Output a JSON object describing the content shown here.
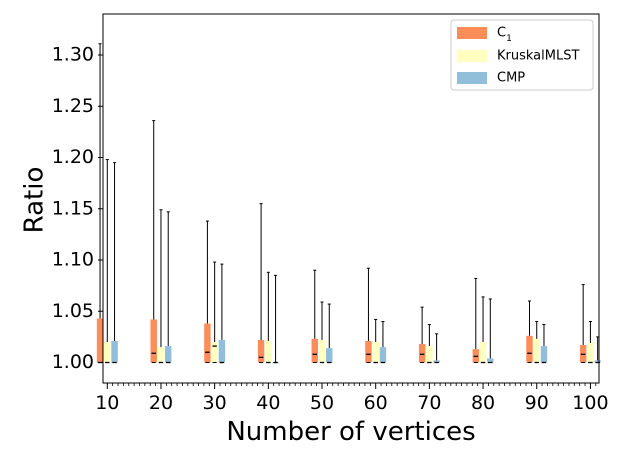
{
  "chart_data": {
    "type": "boxplot",
    "title": "",
    "xlabel": "Number of vertices",
    "ylabel": "Ratio",
    "ylim": [
      0.98,
      1.34
    ],
    "xlim": [
      9.2,
      101.6
    ],
    "yticks": [
      1.0,
      1.05,
      1.1,
      1.15,
      1.2,
      1.25,
      1.3
    ],
    "ytick_labels": [
      "1.00",
      "1.05",
      "1.10",
      "1.15",
      "1.20",
      "1.25",
      "1.30"
    ],
    "xticks": [
      10,
      20,
      30,
      40,
      50,
      60,
      70,
      80,
      90,
      100
    ],
    "xtick_labels": [
      "10",
      "20",
      "30",
      "40",
      "50",
      "60",
      "70",
      "80",
      "90",
      "100"
    ],
    "grid": false,
    "legend_position": "top-right",
    "series": [
      {
        "name": "C",
        "name_subscript": "1",
        "color": "#fc8d59",
        "boxes": [
          {
            "x": 10,
            "q1": 1.0,
            "median": 1.0,
            "q3": 1.043,
            "whisker_low": 1.0,
            "whisker_high": 1.311
          },
          {
            "x": 20,
            "q1": 1.0,
            "median": 1.009,
            "q3": 1.042,
            "whisker_low": 1.0,
            "whisker_high": 1.236
          },
          {
            "x": 30,
            "q1": 1.0,
            "median": 1.01,
            "q3": 1.038,
            "whisker_low": 1.0,
            "whisker_high": 1.138
          },
          {
            "x": 40,
            "q1": 1.0,
            "median": 1.005,
            "q3": 1.022,
            "whisker_low": 1.0,
            "whisker_high": 1.155
          },
          {
            "x": 50,
            "q1": 1.0,
            "median": 1.008,
            "q3": 1.023,
            "whisker_low": 1.0,
            "whisker_high": 1.09
          },
          {
            "x": 60,
            "q1": 1.0,
            "median": 1.008,
            "q3": 1.021,
            "whisker_low": 1.0,
            "whisker_high": 1.092
          },
          {
            "x": 70,
            "q1": 1.0,
            "median": 1.008,
            "q3": 1.018,
            "whisker_low": 1.0,
            "whisker_high": 1.054
          },
          {
            "x": 80,
            "q1": 1.0,
            "median": 1.006,
            "q3": 1.013,
            "whisker_low": 1.0,
            "whisker_high": 1.082
          },
          {
            "x": 90,
            "q1": 1.0,
            "median": 1.009,
            "q3": 1.026,
            "whisker_low": 1.0,
            "whisker_high": 1.06
          },
          {
            "x": 100,
            "q1": 1.0,
            "median": 1.008,
            "q3": 1.017,
            "whisker_low": 1.0,
            "whisker_high": 1.076
          }
        ]
      },
      {
        "name": "KruskalMLST",
        "name_subscript": "",
        "color": "#ffffbf",
        "boxes": [
          {
            "x": 10,
            "q1": 1.0,
            "median": 1.0,
            "q3": 1.02,
            "whisker_low": 1.0,
            "whisker_high": 1.198
          },
          {
            "x": 20,
            "q1": 1.0,
            "median": 1.0,
            "q3": 1.015,
            "whisker_low": 1.0,
            "whisker_high": 1.149
          },
          {
            "x": 30,
            "q1": 1.0,
            "median": 1.016,
            "q3": 1.02,
            "whisker_low": 1.0,
            "whisker_high": 1.098
          },
          {
            "x": 40,
            "q1": 1.0,
            "median": 1.0,
            "q3": 1.021,
            "whisker_low": 1.0,
            "whisker_high": 1.088
          },
          {
            "x": 50,
            "q1": 1.0,
            "median": 1.0,
            "q3": 1.022,
            "whisker_low": 1.0,
            "whisker_high": 1.059
          },
          {
            "x": 60,
            "q1": 1.0,
            "median": 1.0,
            "q3": 1.02,
            "whisker_low": 1.0,
            "whisker_high": 1.042
          },
          {
            "x": 70,
            "q1": 1.0,
            "median": 1.0,
            "q3": 1.016,
            "whisker_low": 1.0,
            "whisker_high": 1.037
          },
          {
            "x": 80,
            "q1": 1.0,
            "median": 1.0,
            "q3": 1.02,
            "whisker_low": 1.0,
            "whisker_high": 1.064
          },
          {
            "x": 90,
            "q1": 1.0,
            "median": 1.0,
            "q3": 1.023,
            "whisker_low": 1.0,
            "whisker_high": 1.04
          },
          {
            "x": 100,
            "q1": 1.0,
            "median": 1.0,
            "q3": 1.019,
            "whisker_low": 1.0,
            "whisker_high": 1.04
          }
        ]
      },
      {
        "name": "CMP",
        "name_subscript": "",
        "color": "#91bfdb",
        "boxes": [
          {
            "x": 10,
            "q1": 1.0,
            "median": 1.0,
            "q3": 1.021,
            "whisker_low": 1.0,
            "whisker_high": 1.195
          },
          {
            "x": 20,
            "q1": 1.0,
            "median": 1.0,
            "q3": 1.016,
            "whisker_low": 1.0,
            "whisker_high": 1.147
          },
          {
            "x": 30,
            "q1": 1.0,
            "median": 1.0,
            "q3": 1.022,
            "whisker_low": 1.0,
            "whisker_high": 1.096
          },
          {
            "x": 40,
            "q1": 1.0,
            "median": 1.0,
            "q3": 1.0,
            "whisker_low": 1.0,
            "whisker_high": 1.085
          },
          {
            "x": 50,
            "q1": 1.0,
            "median": 1.0,
            "q3": 1.014,
            "whisker_low": 1.0,
            "whisker_high": 1.057
          },
          {
            "x": 60,
            "q1": 1.0,
            "median": 1.0,
            "q3": 1.015,
            "whisker_low": 1.0,
            "whisker_high": 1.04
          },
          {
            "x": 70,
            "q1": 1.0,
            "median": 1.0,
            "q3": 1.002,
            "whisker_low": 1.0,
            "whisker_high": 1.028
          },
          {
            "x": 80,
            "q1": 1.0,
            "median": 1.0,
            "q3": 1.004,
            "whisker_low": 1.0,
            "whisker_high": 1.062
          },
          {
            "x": 90,
            "q1": 1.0,
            "median": 1.0,
            "q3": 1.016,
            "whisker_low": 1.0,
            "whisker_high": 1.037
          },
          {
            "x": 100,
            "q1": 1.0,
            "median": 1.0,
            "q3": 1.002,
            "whisker_low": 1.0,
            "whisker_high": 1.025
          }
        ]
      }
    ]
  }
}
